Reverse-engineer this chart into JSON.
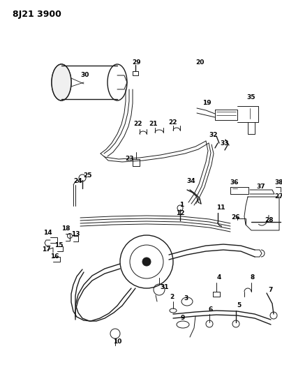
{
  "title": "8J21 3900",
  "bg_color": "#ffffff",
  "line_color": "#1a1a1a",
  "label_color": "#000000",
  "title_fontsize": 9,
  "label_fontsize": 6.5,
  "fig_width": 4.04,
  "fig_height": 5.33,
  "dpi": 100
}
